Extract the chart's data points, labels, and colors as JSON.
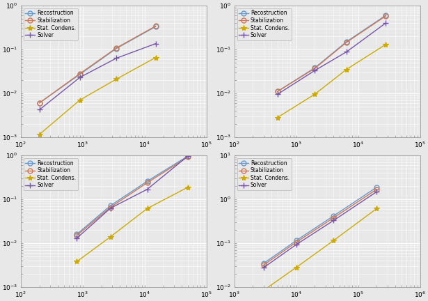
{
  "subplots": [
    {
      "xlim": [
        100,
        100000
      ],
      "ylim": [
        0.001,
        1.0
      ],
      "reconstruction": {
        "x": [
          200,
          900,
          3500,
          15000
        ],
        "y": [
          0.006,
          0.027,
          0.105,
          0.33
        ]
      },
      "stabilization": {
        "x": [
          200,
          900,
          3500,
          15000
        ],
        "y": [
          0.006,
          0.028,
          0.108,
          0.34
        ]
      },
      "stat_condens": {
        "x": [
          200,
          900,
          3500,
          15000
        ],
        "y": [
          0.00115,
          0.007,
          0.021,
          0.065
        ]
      },
      "solver": {
        "x": [
          200,
          900,
          3500,
          15000
        ],
        "y": [
          0.0042,
          0.023,
          0.063,
          0.135
        ]
      }
    },
    {
      "xlim": [
        100,
        100000
      ],
      "ylim": [
        0.001,
        1.0
      ],
      "reconstruction": {
        "x": [
          500,
          2000,
          6500,
          28000
        ],
        "y": [
          0.011,
          0.038,
          0.15,
          0.6
        ]
      },
      "stabilization": {
        "x": [
          500,
          2000,
          6500,
          28000
        ],
        "y": [
          0.011,
          0.037,
          0.145,
          0.58
        ]
      },
      "stat_condens": {
        "x": [
          500,
          2000,
          6500,
          28000
        ],
        "y": [
          0.0028,
          0.0095,
          0.035,
          0.13
        ]
      },
      "solver": {
        "x": [
          500,
          2000,
          6500,
          28000
        ],
        "y": [
          0.0095,
          0.033,
          0.088,
          0.4
        ]
      }
    },
    {
      "xlim": [
        100,
        100000
      ],
      "ylim": [
        0.001,
        1.0
      ],
      "reconstruction": {
        "x": [
          800,
          2800,
          11000,
          50000
        ],
        "y": [
          0.016,
          0.072,
          0.26,
          0.98
        ]
      },
      "stabilization": {
        "x": [
          800,
          2800,
          11000,
          50000
        ],
        "y": [
          0.015,
          0.066,
          0.24,
          0.93
        ]
      },
      "stat_condens": {
        "x": [
          800,
          2800,
          11000,
          50000
        ],
        "y": [
          0.0038,
          0.014,
          0.062,
          0.19
        ]
      },
      "solver": {
        "x": [
          800,
          2800,
          11000,
          50000
        ],
        "y": [
          0.013,
          0.063,
          0.17,
          0.98
        ]
      }
    },
    {
      "xlim": [
        1000,
        1000000
      ],
      "ylim": [
        0.01,
        10.0
      ],
      "reconstruction": {
        "x": [
          3000,
          10000,
          40000,
          200000
        ],
        "y": [
          0.035,
          0.115,
          0.42,
          1.9
        ]
      },
      "stabilization": {
        "x": [
          3000,
          10000,
          40000,
          200000
        ],
        "y": [
          0.032,
          0.105,
          0.38,
          1.7
        ]
      },
      "stat_condens": {
        "x": [
          3000,
          10000,
          40000,
          200000
        ],
        "y": [
          0.0085,
          0.028,
          0.115,
          0.62
        ]
      },
      "solver": {
        "x": [
          3000,
          10000,
          40000,
          200000
        ],
        "y": [
          0.028,
          0.093,
          0.33,
          1.5
        ]
      }
    }
  ],
  "colors": {
    "reconstruction": "#6699cc",
    "stabilization": "#cc7755",
    "stat_condens": "#ccaa00",
    "solver": "#7755aa"
  },
  "markers": {
    "reconstruction": "o",
    "stabilization": "o",
    "stat_condens": "*",
    "solver": "+"
  },
  "legend_labels": {
    "reconstruction": "Recostruction",
    "stabilization": "Stabilization",
    "stat_condens": "Stat. Condens.",
    "solver": "Solver"
  },
  "background_color": "#e8e8e8",
  "grid_color": "#ffffff",
  "linewidth": 1.0,
  "markersize_circle": 5,
  "markersize_star": 6,
  "markersize_plus": 6
}
